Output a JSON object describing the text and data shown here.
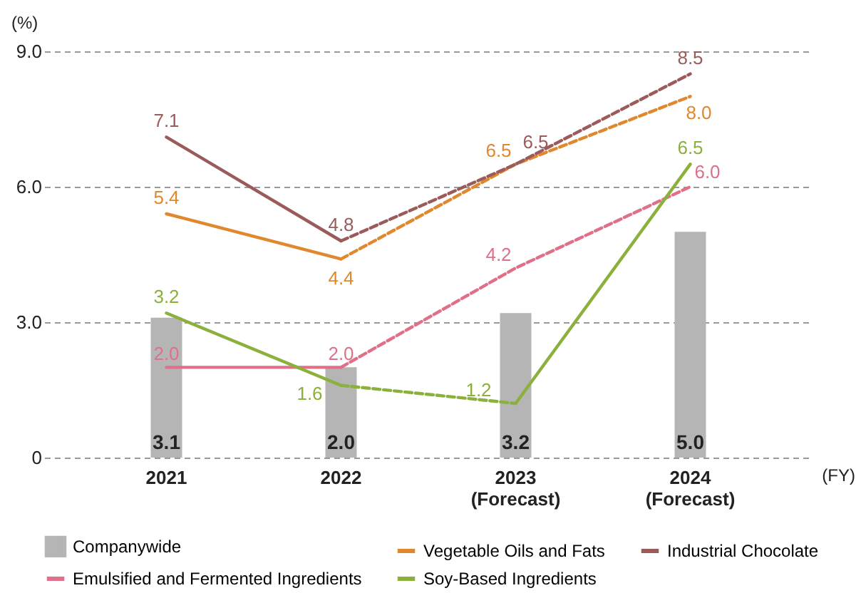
{
  "chart_data": {
    "type": "line",
    "ylabel": "(%)",
    "xlabel": "(FY)",
    "categories": [
      "2021",
      "2022",
      "2023\n(Forecast)",
      "2024\n(Forecast)"
    ],
    "ylim": [
      0,
      9
    ],
    "yticks": [
      {
        "value": 0,
        "label": "0"
      },
      {
        "value": 3,
        "label": "3.0"
      },
      {
        "value": 6,
        "label": "6.0"
      },
      {
        "value": 9,
        "label": "9.0"
      }
    ],
    "grid": "y",
    "legend": "bottom",
    "series": [
      {
        "name": "Companywide",
        "type": "bar",
        "color": "#b5b5b5",
        "values": [
          3.1,
          2.0,
          3.2,
          5.0
        ],
        "value_labels": [
          "3.1",
          "2.0",
          "3.2",
          "5.0"
        ]
      },
      {
        "name": "Vegetable Oils and Fats",
        "color": "#e0882e",
        "line_style": "solid",
        "values": [
          5.4,
          4.4,
          null,
          null
        ],
        "value_labels": [
          "5.4",
          "4.4",
          null,
          null
        ]
      },
      {
        "color": "#e0882e",
        "line_style": "dashed",
        "values": [
          null,
          4.4,
          6.5,
          8.0
        ],
        "value_labels": [
          null,
          null,
          "6.5",
          "8.0"
        ]
      },
      {
        "name": "Industrial Chocolate",
        "color": "#9c5b5b",
        "line_style": "solid",
        "values": [
          7.1,
          4.8,
          null,
          null
        ],
        "value_labels": [
          "7.1",
          "4.8",
          null,
          null
        ]
      },
      {
        "color": "#9c5b5b",
        "line_style": "dashed",
        "values": [
          null,
          4.8,
          6.5,
          8.5
        ],
        "value_labels": [
          null,
          null,
          "6.5",
          "8.5"
        ]
      },
      {
        "name": "Emulsified and Fermented Ingredients",
        "color": "#e0708a",
        "line_style": "solid",
        "values": [
          2.0,
          2.0,
          null,
          null
        ],
        "value_labels": [
          "2.0",
          "2.0",
          null,
          null
        ]
      },
      {
        "color": "#e0708a",
        "line_style": "dashed",
        "values": [
          null,
          2.0,
          4.2,
          6.0
        ],
        "value_labels": [
          null,
          null,
          "4.2",
          "6.0"
        ]
      },
      {
        "name": "Soy-Based Ingredients",
        "color": "#8cb03c",
        "line_style": "solid",
        "values": [
          3.2,
          1.6,
          null,
          null
        ],
        "value_labels": [
          "3.2",
          "1.6",
          null,
          null
        ]
      },
      {
        "color": "#8cb03c",
        "line_style": "dashed",
        "values": [
          null,
          1.6,
          1.2,
          null
        ],
        "value_labels": [
          null,
          null,
          "1.2",
          null
        ]
      },
      {
        "color": "#8cb03c",
        "line_style": "solid",
        "values": [
          null,
          null,
          1.2,
          6.5
        ],
        "value_labels": [
          null,
          null,
          null,
          "6.5"
        ]
      }
    ]
  }
}
